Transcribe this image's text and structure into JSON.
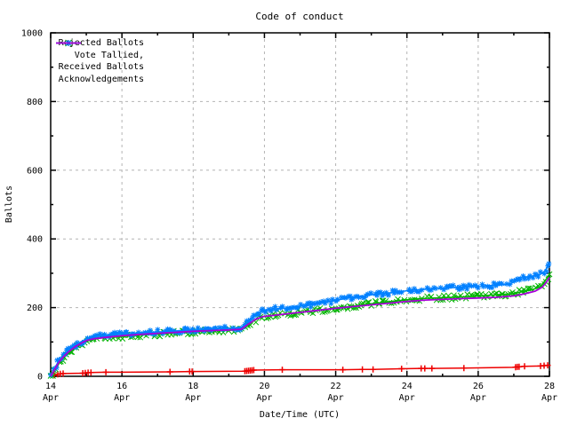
{
  "title": "Code of conduct",
  "axes": {
    "x_label": "Date/Time (UTC)",
    "y_label": "Ballots",
    "x_ticks": [
      {
        "value": 14,
        "line1": "14",
        "line2": "Apr"
      },
      {
        "value": 16,
        "line1": "16",
        "line2": "Apr"
      },
      {
        "value": 18,
        "line1": "18",
        "line2": "Apr"
      },
      {
        "value": 20,
        "line1": "20",
        "line2": "Apr"
      },
      {
        "value": 22,
        "line1": "22",
        "line2": "Apr"
      },
      {
        "value": 24,
        "line1": "24",
        "line2": "Apr"
      },
      {
        "value": 26,
        "line1": "26",
        "line2": "Apr"
      },
      {
        "value": 28,
        "line1": "28",
        "line2": "Apr"
      }
    ],
    "x_minor_ticks": [
      15,
      17,
      19,
      21,
      23,
      25,
      27
    ],
    "y_ticks": [
      {
        "value": 0,
        "label": "0"
      },
      {
        "value": 200,
        "label": "200"
      },
      {
        "value": 400,
        "label": "400"
      },
      {
        "value": 600,
        "label": "600"
      },
      {
        "value": 800,
        "label": "800"
      },
      {
        "value": 1000,
        "label": "1000"
      }
    ],
    "y_minor_ticks": [
      100,
      300,
      500,
      700,
      900
    ]
  },
  "legend": [
    {
      "label": "Rejected Ballots",
      "series": "rejected"
    },
    {
      "label": "Vote Tallied,",
      "series": "tallied"
    },
    {
      "label": "Received Ballots",
      "series": "received"
    },
    {
      "label": "Acknowledgements",
      "series": "acks"
    }
  ],
  "colors": {
    "rejected": "#ee0000",
    "tallied": "#00b400",
    "received": "#0080ff",
    "acks": "#a800d8",
    "grid": "#b4b4b4",
    "border": "#000000"
  },
  "chart_data": {
    "type": "line",
    "title": "Code of conduct",
    "xlabel": "Date/Time (UTC)",
    "ylabel": "Ballots",
    "x_unit": "day of April (UTC)",
    "xlim_days_april": [
      14,
      28
    ],
    "ylim": [
      0,
      1000
    ],
    "grid": true,
    "legend_position": "top-left",
    "series": [
      {
        "name": "Rejected Ballots",
        "color_key": "rejected",
        "marker": "plus",
        "dense_markers": false,
        "points": [
          [
            14.0,
            0
          ],
          [
            14.1,
            3
          ],
          [
            14.2,
            6
          ],
          [
            14.35,
            8
          ],
          [
            14.9,
            9
          ],
          [
            15.1,
            11
          ],
          [
            15.55,
            12
          ],
          [
            16.0,
            12
          ],
          [
            17.35,
            13
          ],
          [
            17.95,
            14
          ],
          [
            19.45,
            15
          ],
          [
            19.7,
            18
          ],
          [
            20.5,
            19
          ],
          [
            22.2,
            19
          ],
          [
            22.75,
            20
          ],
          [
            23.05,
            20
          ],
          [
            23.85,
            22
          ],
          [
            24.4,
            23
          ],
          [
            24.7,
            23
          ],
          [
            25.6,
            24
          ],
          [
            27.0,
            26
          ],
          [
            27.15,
            28
          ],
          [
            27.3,
            29
          ],
          [
            27.75,
            30
          ],
          [
            27.85,
            31
          ],
          [
            27.95,
            32
          ],
          [
            28.0,
            33
          ]
        ],
        "marker_days": [
          14.1,
          14.2,
          14.27,
          14.35,
          14.9,
          14.97,
          15.05,
          15.13,
          15.55,
          17.35,
          17.9,
          17.97,
          19.45,
          19.5,
          19.55,
          19.6,
          19.65,
          19.7,
          20.5,
          22.2,
          22.75,
          23.05,
          23.85,
          24.4,
          24.5,
          24.7,
          25.6,
          27.05,
          27.1,
          27.15,
          27.3,
          27.75,
          27.85,
          27.95
        ]
      },
      {
        "name": "Vote Tallied,",
        "color_key": "tallied",
        "marker": "cross",
        "dense_markers": true,
        "points": [
          [
            14.0,
            0
          ],
          [
            14.05,
            6
          ],
          [
            14.1,
            15
          ],
          [
            14.2,
            32
          ],
          [
            14.3,
            46
          ],
          [
            14.4,
            57
          ],
          [
            14.5,
            67
          ],
          [
            14.6,
            76
          ],
          [
            14.7,
            83
          ],
          [
            14.8,
            90
          ],
          [
            14.9,
            96
          ],
          [
            15.0,
            101
          ],
          [
            15.1,
            106
          ],
          [
            15.3,
            110
          ],
          [
            15.6,
            113
          ],
          [
            16.0,
            116
          ],
          [
            16.5,
            120
          ],
          [
            17.0,
            123
          ],
          [
            17.5,
            126
          ],
          [
            18.0,
            129
          ],
          [
            18.5,
            132
          ],
          [
            19.0,
            134
          ],
          [
            19.35,
            135
          ],
          [
            19.5,
            146
          ],
          [
            19.65,
            158
          ],
          [
            19.8,
            167
          ],
          [
            19.95,
            173
          ],
          [
            20.2,
            177
          ],
          [
            20.5,
            180
          ],
          [
            21.0,
            186
          ],
          [
            21.5,
            192
          ],
          [
            22.0,
            198
          ],
          [
            22.5,
            205
          ],
          [
            23.0,
            211
          ],
          [
            23.5,
            217
          ],
          [
            24.0,
            223
          ],
          [
            24.5,
            227
          ],
          [
            25.0,
            229
          ],
          [
            25.5,
            231
          ],
          [
            26.0,
            234
          ],
          [
            26.5,
            237
          ],
          [
            27.0,
            241
          ],
          [
            27.2,
            246
          ],
          [
            27.4,
            250
          ],
          [
            27.6,
            255
          ],
          [
            27.75,
            262
          ],
          [
            27.85,
            275
          ],
          [
            27.95,
            288
          ],
          [
            28.0,
            297
          ]
        ]
      },
      {
        "name": "Received Ballots",
        "color_key": "received",
        "marker": "asterisk",
        "dense_markers": true,
        "points": [
          [
            14.0,
            0
          ],
          [
            14.05,
            10
          ],
          [
            14.1,
            22
          ],
          [
            14.2,
            40
          ],
          [
            14.3,
            55
          ],
          [
            14.4,
            65
          ],
          [
            14.5,
            76
          ],
          [
            14.6,
            84
          ],
          [
            14.7,
            91
          ],
          [
            14.8,
            98
          ],
          [
            14.9,
            103
          ],
          [
            15.0,
            109
          ],
          [
            15.1,
            113
          ],
          [
            15.3,
            116
          ],
          [
            15.6,
            119
          ],
          [
            16.0,
            122
          ],
          [
            16.5,
            126
          ],
          [
            17.0,
            129
          ],
          [
            17.5,
            132
          ],
          [
            18.0,
            135
          ],
          [
            18.3,
            137
          ],
          [
            18.7,
            139
          ],
          [
            19.0,
            140
          ],
          [
            19.35,
            142
          ],
          [
            19.5,
            155
          ],
          [
            19.65,
            170
          ],
          [
            19.8,
            182
          ],
          [
            19.95,
            190
          ],
          [
            20.1,
            194
          ],
          [
            20.3,
            196
          ],
          [
            20.6,
            199
          ],
          [
            21.0,
            204
          ],
          [
            21.3,
            208
          ],
          [
            21.6,
            214
          ],
          [
            22.0,
            221
          ],
          [
            22.3,
            227
          ],
          [
            22.6,
            232
          ],
          [
            23.0,
            237
          ],
          [
            23.3,
            240
          ],
          [
            23.6,
            244
          ],
          [
            24.0,
            249
          ],
          [
            24.3,
            252
          ],
          [
            24.6,
            254
          ],
          [
            25.0,
            257
          ],
          [
            25.5,
            259
          ],
          [
            26.0,
            262
          ],
          [
            26.3,
            264
          ],
          [
            26.6,
            266
          ],
          [
            26.9,
            269
          ],
          [
            27.0,
            275
          ],
          [
            27.1,
            283
          ],
          [
            27.2,
            287
          ],
          [
            27.4,
            290
          ],
          [
            27.6,
            293
          ],
          [
            27.75,
            297
          ],
          [
            27.85,
            305
          ],
          [
            27.95,
            318
          ],
          [
            28.0,
            330
          ]
        ]
      },
      {
        "name": "Acknowledgements",
        "color_key": "acks",
        "marker": "none",
        "dense_markers": false,
        "points": [
          [
            14.0,
            0
          ],
          [
            14.1,
            18
          ],
          [
            14.2,
            36
          ],
          [
            14.3,
            50
          ],
          [
            14.4,
            61
          ],
          [
            14.5,
            71
          ],
          [
            14.6,
            79
          ],
          [
            14.7,
            87
          ],
          [
            14.8,
            93
          ],
          [
            14.9,
            99
          ],
          [
            15.0,
            104
          ],
          [
            15.2,
            109
          ],
          [
            15.5,
            113
          ],
          [
            16.0,
            118
          ],
          [
            16.5,
            122
          ],
          [
            17.0,
            125
          ],
          [
            17.5,
            128
          ],
          [
            18.0,
            131
          ],
          [
            18.5,
            133
          ],
          [
            19.0,
            135
          ],
          [
            19.35,
            137
          ],
          [
            19.55,
            152
          ],
          [
            19.75,
            166
          ],
          [
            19.95,
            174
          ],
          [
            20.3,
            178
          ],
          [
            21.0,
            186
          ],
          [
            21.5,
            192
          ],
          [
            22.0,
            198
          ],
          [
            22.5,
            203
          ],
          [
            23.0,
            208
          ],
          [
            23.5,
            213
          ],
          [
            24.0,
            218
          ],
          [
            24.5,
            222
          ],
          [
            25.0,
            224
          ],
          [
            25.5,
            226
          ],
          [
            26.0,
            228
          ],
          [
            26.5,
            230
          ],
          [
            27.0,
            234
          ],
          [
            27.3,
            240
          ],
          [
            27.6,
            248
          ],
          [
            27.8,
            260
          ],
          [
            27.9,
            272
          ],
          [
            28.0,
            288
          ]
        ]
      }
    ]
  }
}
